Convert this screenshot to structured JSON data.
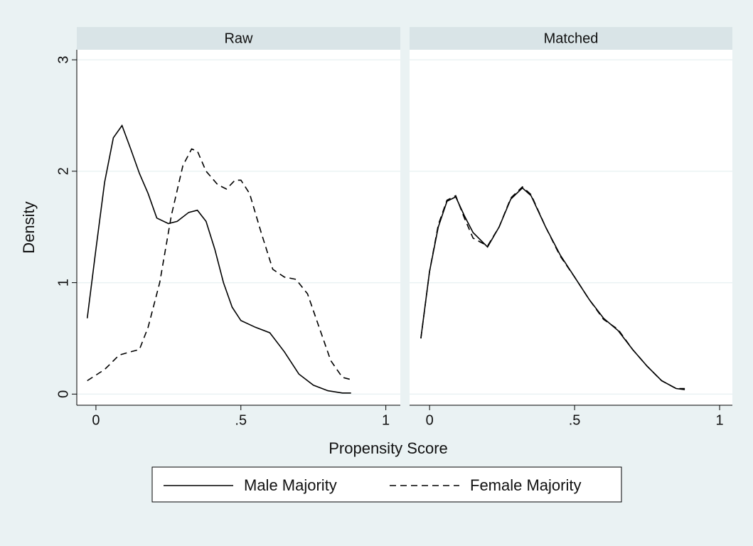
{
  "chart_data": [
    {
      "type": "line",
      "title": "Raw",
      "xlabel": "Propensity Score",
      "ylabel": "Density",
      "xlim": [
        -0.066,
        1.05
      ],
      "ylim": [
        -0.1,
        3.09
      ],
      "xticks": [
        0,
        {
          "value": 0.5,
          "label": ".5"
        },
        1
      ],
      "yticks": [
        0,
        1,
        2,
        3
      ],
      "grid": true,
      "legend": "bottom",
      "series": [
        {
          "name": "Male Majority",
          "color": "#000000",
          "dash": false,
          "x": [
            -0.03,
            0,
            0.03,
            0.06,
            0.09,
            0.12,
            0.15,
            0.18,
            0.21,
            0.25,
            0.28,
            0.32,
            0.35,
            0.38,
            0.41,
            0.44,
            0.47,
            0.5,
            0.55,
            0.6,
            0.65,
            0.7,
            0.75,
            0.8,
            0.85,
            0.88
          ],
          "values": [
            0.68,
            1.3,
            1.9,
            2.3,
            2.41,
            2.2,
            1.98,
            1.8,
            1.58,
            1.53,
            1.55,
            1.63,
            1.65,
            1.55,
            1.3,
            1.0,
            0.78,
            0.66,
            0.6,
            0.55,
            0.38,
            0.18,
            0.08,
            0.03,
            0.01,
            0.01
          ]
        },
        {
          "name": "Female Majority",
          "color": "#000000",
          "dash": true,
          "x": [
            -0.03,
            0.03,
            0.08,
            0.12,
            0.15,
            0.18,
            0.22,
            0.26,
            0.3,
            0.33,
            0.35,
            0.38,
            0.42,
            0.45,
            0.48,
            0.5,
            0.53,
            0.57,
            0.61,
            0.65,
            0.69,
            0.73,
            0.77,
            0.81,
            0.85,
            0.88
          ],
          "values": [
            0.12,
            0.22,
            0.35,
            0.38,
            0.4,
            0.6,
            1.0,
            1.6,
            2.05,
            2.2,
            2.18,
            2.0,
            1.88,
            1.84,
            1.92,
            1.92,
            1.8,
            1.45,
            1.12,
            1.05,
            1.03,
            0.9,
            0.6,
            0.3,
            0.15,
            0.13
          ]
        }
      ]
    },
    {
      "type": "line",
      "title": "Matched",
      "xlim": [
        -0.069,
        1.044
      ],
      "xticks": [
        0,
        {
          "value": 0.5,
          "label": ".5"
        },
        1
      ],
      "series": [
        {
          "color": "#000000",
          "dash": false,
          "x": [
            -0.03,
            0,
            0.03,
            0.06,
            0.09,
            0.12,
            0.15,
            0.2,
            0.24,
            0.28,
            0.32,
            0.35,
            0.4,
            0.45,
            0.5,
            0.55,
            0.6,
            0.65,
            0.7,
            0.75,
            0.8,
            0.85,
            0.88
          ],
          "values": [
            0.5,
            1.1,
            1.5,
            1.73,
            1.77,
            1.6,
            1.45,
            1.32,
            1.5,
            1.75,
            1.85,
            1.78,
            1.5,
            1.25,
            1.05,
            0.85,
            0.68,
            0.57,
            0.4,
            0.25,
            0.12,
            0.05,
            0.04
          ]
        },
        {
          "color": "#000000",
          "dash": true,
          "x": [
            -0.03,
            0,
            0.03,
            0.06,
            0.09,
            0.12,
            0.15,
            0.2,
            0.24,
            0.28,
            0.32,
            0.35,
            0.4,
            0.45,
            0.5,
            0.55,
            0.6,
            0.65,
            0.7,
            0.75,
            0.8,
            0.85,
            0.88
          ],
          "values": [
            0.5,
            1.1,
            1.52,
            1.74,
            1.78,
            1.58,
            1.4,
            1.33,
            1.5,
            1.76,
            1.86,
            1.79,
            1.5,
            1.24,
            1.05,
            0.85,
            0.67,
            0.58,
            0.4,
            0.25,
            0.12,
            0.05,
            0.05
          ]
        }
      ]
    }
  ]
}
